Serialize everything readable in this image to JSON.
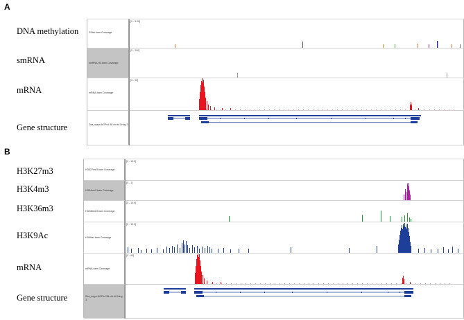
{
  "panels": [
    {
      "letter": "A",
      "rows": [
        {
          "label": "DNA methylation",
          "track_name": "ZSiss.bam Coverage",
          "range": "[0 - 5.00]",
          "selected": false,
          "color": "#7a7a7a"
        },
        {
          "label": "smRNA",
          "track_name": "smRNA.H3.bam Coverage",
          "range": "[0 - 200]",
          "selected": true,
          "color": "#9a9a9a"
        },
        {
          "label": "mRNA",
          "track_name": "mRNA.bam Coverage",
          "range": "[0 - 90]",
          "selected": false,
          "color": "#e8141e"
        },
        {
          "label": "Gene structure",
          "track_name": "Zea_mays.AGPv4.38.chr.bl.Gring 3",
          "range": "",
          "selected": false,
          "color": "#1d3f9a"
        }
      ]
    },
    {
      "letter": "B",
      "rows": [
        {
          "label": "H3K27m3",
          "track_name": "H3K27me3.bam Coverage",
          "range": "[0 - 10.0]",
          "selected": false,
          "color": "#6a6a6a"
        },
        {
          "label": "H3K4m3",
          "track_name": "H3K4me3.bam Coverage",
          "range": "[0 - 1]",
          "selected": true,
          "color": "#b01ea6"
        },
        {
          "label": "H3K36m3",
          "track_name": "H3K36me3.bam Coverage",
          "range": "[0 - 10.0]",
          "selected": false,
          "color": "#1f9a2e"
        },
        {
          "label": "H3K9Ac",
          "track_name": "H3K9ac.bam Coverage",
          "range": "[0 - 10.0]",
          "selected": false,
          "color": "#1d3f9a"
        },
        {
          "label": "mRNA",
          "track_name": "mRNA.bam Coverage",
          "range": "[0 - 90]",
          "selected": false,
          "color": "#e8141e"
        },
        {
          "label": "Gene structure",
          "track_name": "Zea_mays.AGPv4.38.chr.bl.Gring 3",
          "range": "",
          "selected": true,
          "color": "#1d3f9a"
        }
      ]
    }
  ]
}
